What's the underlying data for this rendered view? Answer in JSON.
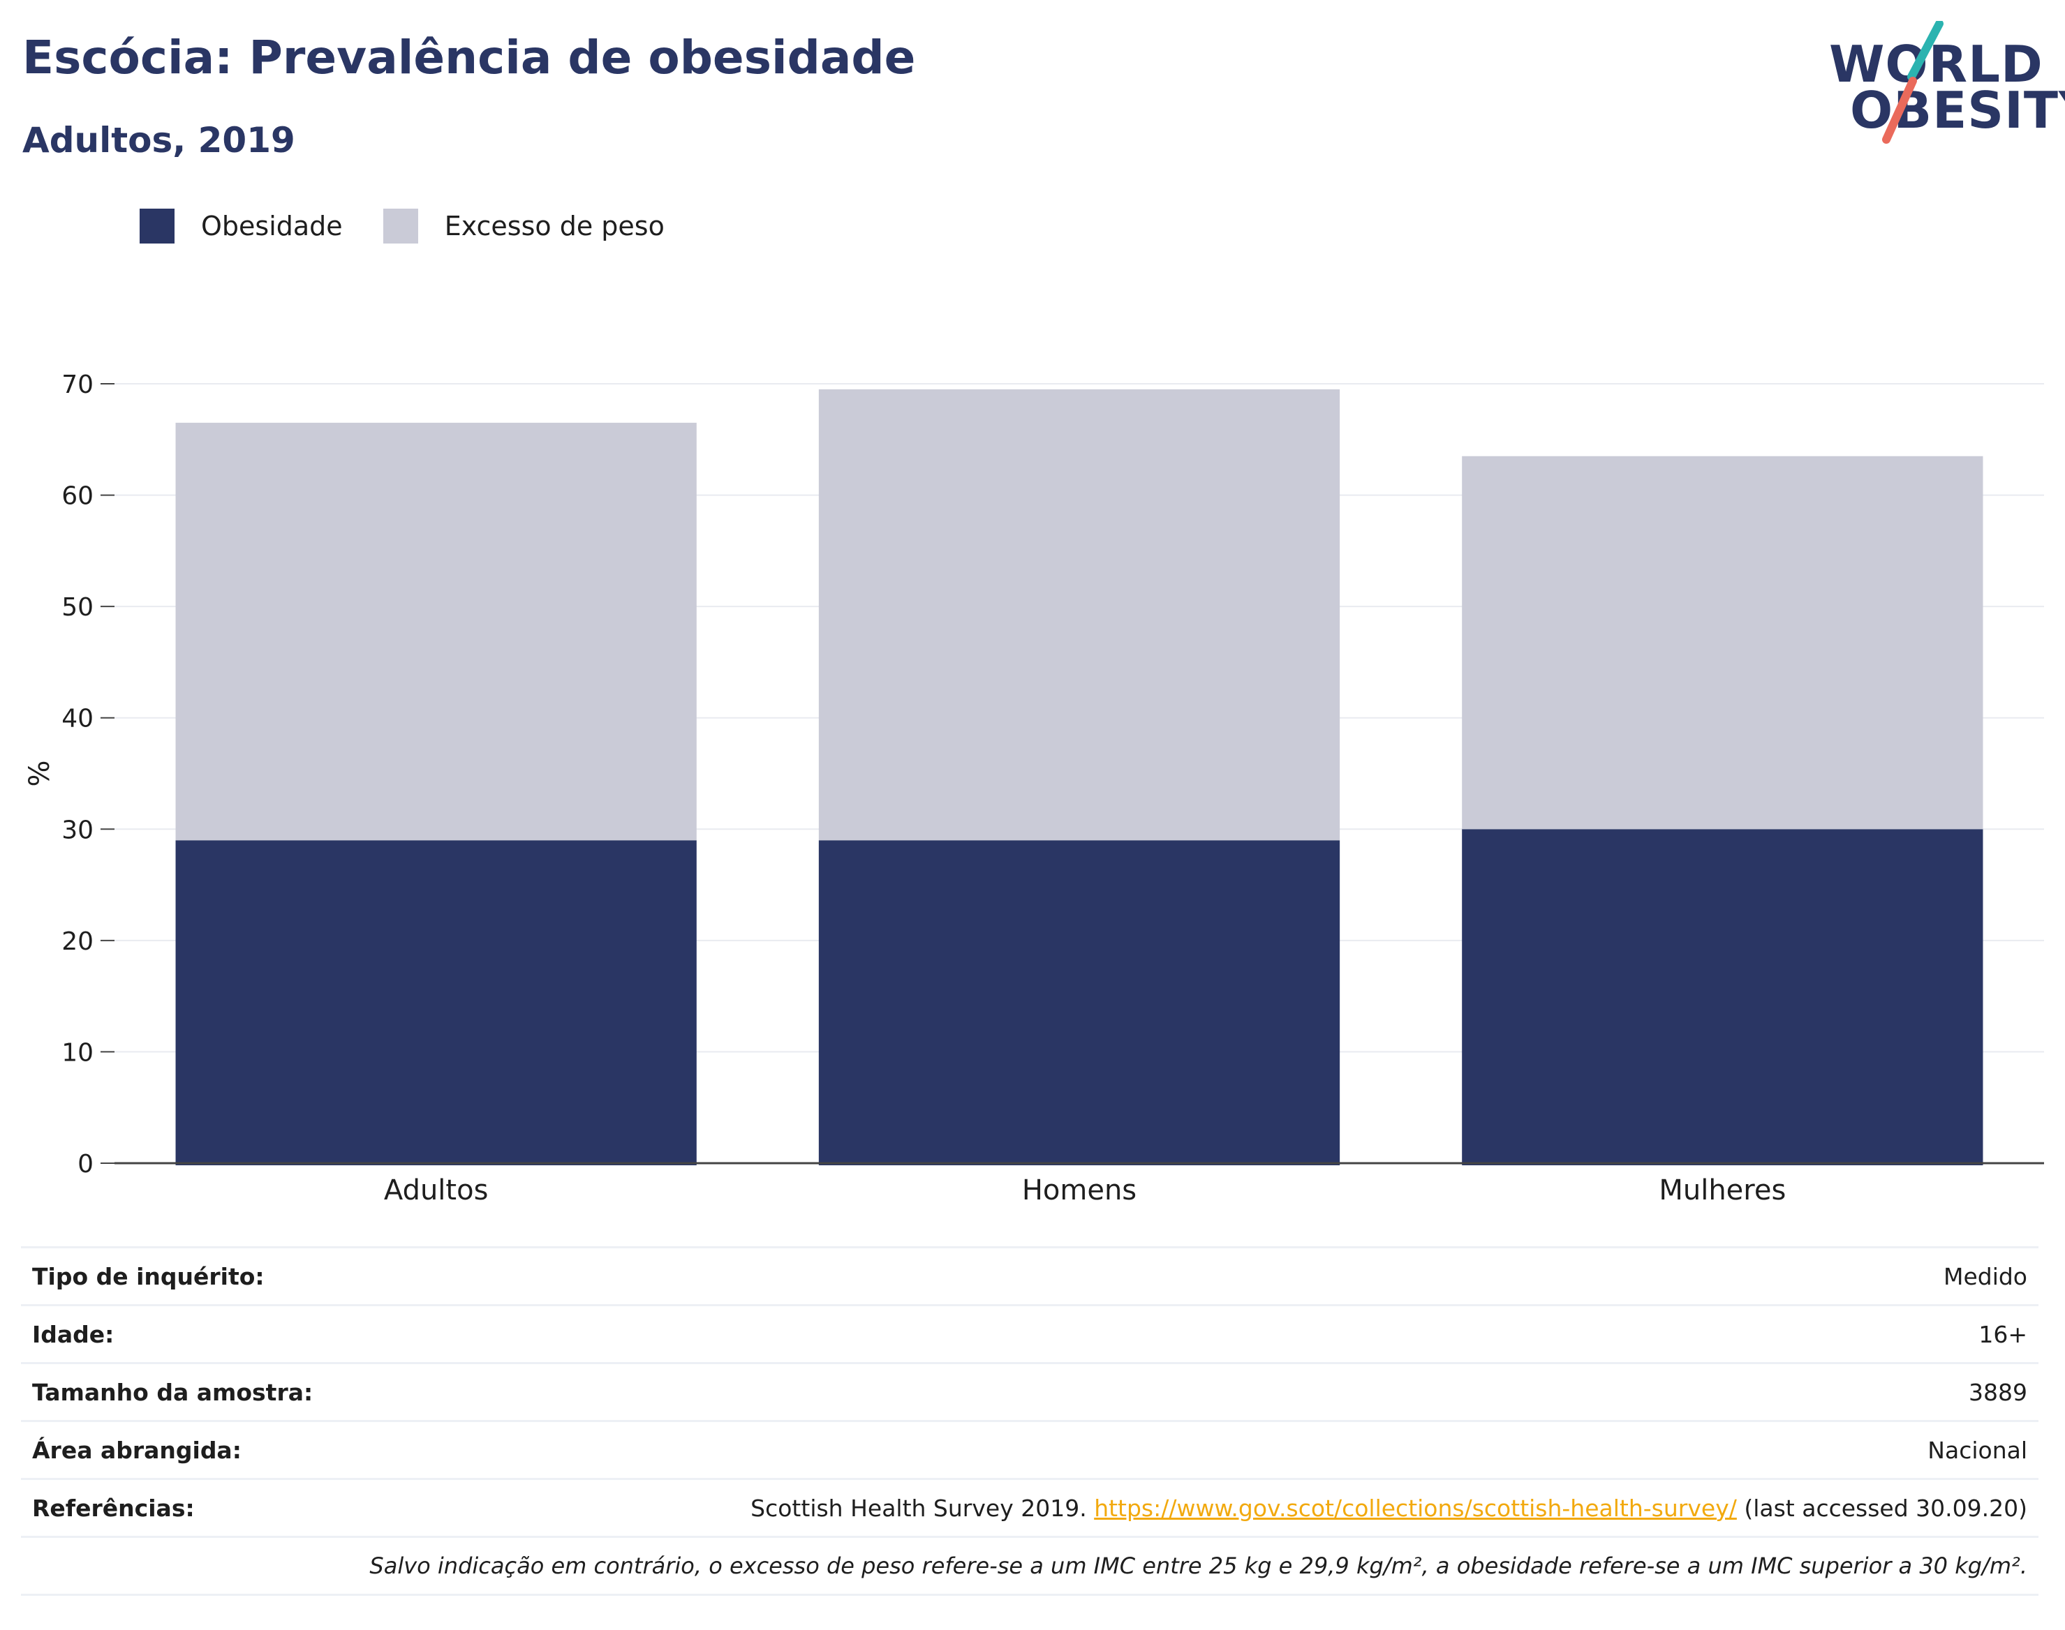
{
  "title": "Escócia: Prevalência de obesidade",
  "subtitle": "Adultos, 2019",
  "logo": {
    "line1": "WORLD",
    "line2": "OBESITY",
    "colors": {
      "navy": "#2a3664",
      "teal": "#2bb3b0",
      "coral": "#ea6a5b"
    }
  },
  "legend": [
    {
      "label": "Obesidade",
      "color": "#2a3664"
    },
    {
      "label": "Excesso de peso",
      "color": "#cacbd7"
    }
  ],
  "chart_data": {
    "type": "bar",
    "stacked": true,
    "categories": [
      "Adultos",
      "Homens",
      "Mulheres"
    ],
    "series": [
      {
        "name": "Obesidade",
        "values": [
          29,
          29,
          30
        ],
        "color": "#2a3664"
      },
      {
        "name": "Excesso de peso",
        "values": [
          37.5,
          40.5,
          33.5
        ],
        "color": "#cacbd7"
      }
    ],
    "ylabel": "%",
    "ylim": [
      0,
      70
    ],
    "yticks": [
      0,
      10,
      20,
      30,
      40,
      50,
      60,
      70
    ],
    "grid": true,
    "legend_position": "top-left"
  },
  "info": {
    "rows": [
      {
        "key": "Tipo de inquérito:",
        "value": "Medido"
      },
      {
        "key": "Idade:",
        "value": "16+"
      },
      {
        "key": "Tamanho da amostra:",
        "value": "3889"
      },
      {
        "key": "Área abrangida:",
        "value": "Nacional"
      }
    ],
    "references": {
      "key": "Referências:",
      "text_before": "Scottish Health Survey 2019. ",
      "link": "https://www.gov.scot/collections/scottish-health-survey/",
      "text_after": " (last accessed 30.09.20)"
    },
    "note": "Salvo indicação em contrário, o excesso de peso refere-se a um IMC entre 25 kg e 29,9 kg/m², a obesidade refere-se a um IMC superior a 30 kg/m²."
  }
}
